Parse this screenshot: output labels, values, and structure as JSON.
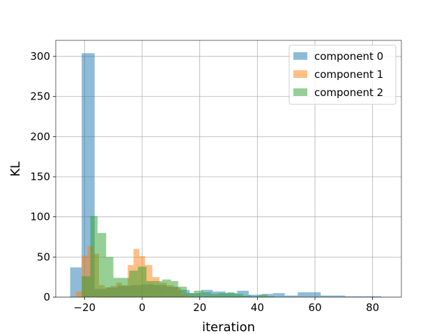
{
  "chart_data": {
    "type": "histogram",
    "title": "",
    "xlabel": "iteration",
    "ylabel": "KL",
    "xlim": [
      -30,
      90
    ],
    "ylim": [
      0,
      320
    ],
    "xticks": [
      -20,
      0,
      20,
      40,
      60,
      80
    ],
    "yticks": [
      0,
      50,
      100,
      150,
      200,
      250,
      300
    ],
    "grid": true,
    "legend_position": "top-right",
    "series": [
      {
        "name": "component 0",
        "color": "#1f77b4",
        "opacity": 0.5,
        "bins": [
          {
            "x0": -25.0,
            "x1": -21.0,
            "y": 37
          },
          {
            "x0": -21.0,
            "x1": -16.5,
            "y": 304
          },
          {
            "x0": -16.5,
            "x1": -12.5,
            "y": 10
          },
          {
            "x0": -12.5,
            "x1": -8.5,
            "y": 12
          },
          {
            "x0": -8.5,
            "x1": -4.0,
            "y": 14
          },
          {
            "x0": -4.0,
            "x1": 0.0,
            "y": 15
          },
          {
            "x0": 0.0,
            "x1": 4.0,
            "y": 16
          },
          {
            "x0": 4.0,
            "x1": 8.5,
            "y": 15
          },
          {
            "x0": 8.5,
            "x1": 12.5,
            "y": 13
          },
          {
            "x0": 12.5,
            "x1": 16.5,
            "y": 9
          },
          {
            "x0": 16.5,
            "x1": 20.5,
            "y": 5
          },
          {
            "x0": 20.5,
            "x1": 24.5,
            "y": 9
          },
          {
            "x0": 24.5,
            "x1": 29.0,
            "y": 7
          },
          {
            "x0": 29.0,
            "x1": 33.0,
            "y": 5
          },
          {
            "x0": 33.0,
            "x1": 37.0,
            "y": 8
          },
          {
            "x0": 37.0,
            "x1": 41.5,
            "y": 3
          },
          {
            "x0": 41.5,
            "x1": 45.5,
            "y": 4
          },
          {
            "x0": 45.5,
            "x1": 49.5,
            "y": 5
          },
          {
            "x0": 49.5,
            "x1": 54.0,
            "y": 2
          },
          {
            "x0": 54.0,
            "x1": 58.0,
            "y": 6
          },
          {
            "x0": 58.0,
            "x1": 62.0,
            "y": 6
          },
          {
            "x0": 62.0,
            "x1": 66.5,
            "y": 2
          },
          {
            "x0": 66.5,
            "x1": 70.5,
            "y": 2
          },
          {
            "x0": 70.5,
            "x1": 74.5,
            "y": 1
          },
          {
            "x0": 74.5,
            "x1": 79.0,
            "y": 1
          },
          {
            "x0": 79.0,
            "x1": 83.0,
            "y": 1
          }
        ]
      },
      {
        "name": "component 1",
        "color": "#ff7f0e",
        "opacity": 0.5,
        "bins": [
          {
            "x0": -23.0,
            "x1": -21.0,
            "y": 7
          },
          {
            "x0": -21.0,
            "x1": -19.0,
            "y": 52
          },
          {
            "x0": -19.0,
            "x1": -17.0,
            "y": 64
          },
          {
            "x0": -17.0,
            "x1": -15.0,
            "y": 54
          },
          {
            "x0": -15.0,
            "x1": -13.0,
            "y": 15
          },
          {
            "x0": -13.0,
            "x1": -11.0,
            "y": 12
          },
          {
            "x0": -11.0,
            "x1": -9.0,
            "y": 14
          },
          {
            "x0": -9.0,
            "x1": -7.0,
            "y": 18
          },
          {
            "x0": -7.0,
            "x1": -5.0,
            "y": 15
          },
          {
            "x0": -5.0,
            "x1": -3.0,
            "y": 40
          },
          {
            "x0": -3.0,
            "x1": -1.0,
            "y": 60
          },
          {
            "x0": -1.0,
            "x1": 1.0,
            "y": 51
          },
          {
            "x0": 1.0,
            "x1": 3.5,
            "y": 40
          },
          {
            "x0": 3.5,
            "x1": 6.0,
            "y": 25
          },
          {
            "x0": 6.0,
            "x1": 8.5,
            "y": 18
          },
          {
            "x0": 8.5,
            "x1": 11.0,
            "y": 15
          },
          {
            "x0": 11.0,
            "x1": 13.5,
            "y": 12
          },
          {
            "x0": 13.5,
            "x1": 16.0,
            "y": 3
          },
          {
            "x0": 16.0,
            "x1": 18.5,
            "y": 1
          }
        ]
      },
      {
        "name": "component 2",
        "color": "#2ca02c",
        "opacity": 0.5,
        "bins": [
          {
            "x0": -21.0,
            "x1": -18.0,
            "y": 26
          },
          {
            "x0": -18.0,
            "x1": -15.5,
            "y": 101
          },
          {
            "x0": -15.5,
            "x1": -12.5,
            "y": 80
          },
          {
            "x0": -12.5,
            "x1": -10.0,
            "y": 50
          },
          {
            "x0": -10.0,
            "x1": -7.0,
            "y": 24
          },
          {
            "x0": -7.0,
            "x1": -4.5,
            "y": 24
          },
          {
            "x0": -4.5,
            "x1": -1.5,
            "y": 33
          },
          {
            "x0": -1.5,
            "x1": 1.5,
            "y": 38
          },
          {
            "x0": 1.5,
            "x1": 4.0,
            "y": 20
          },
          {
            "x0": 4.0,
            "x1": 7.0,
            "y": 20
          },
          {
            "x0": 7.0,
            "x1": 10.0,
            "y": 22
          },
          {
            "x0": 10.0,
            "x1": 12.5,
            "y": 20
          },
          {
            "x0": 12.5,
            "x1": 15.5,
            "y": 13
          },
          {
            "x0": 15.5,
            "x1": 18.0,
            "y": 5
          },
          {
            "x0": 18.0,
            "x1": 21.0,
            "y": 8
          },
          {
            "x0": 21.0,
            "x1": 24.0,
            "y": 6
          },
          {
            "x0": 24.0,
            "x1": 26.5,
            "y": 4
          },
          {
            "x0": 26.5,
            "x1": 29.5,
            "y": 5
          },
          {
            "x0": 29.5,
            "x1": 32.0,
            "y": 6
          },
          {
            "x0": 32.0,
            "x1": 35.0,
            "y": 4
          },
          {
            "x0": 35.0,
            "x1": 38.0,
            "y": 2
          },
          {
            "x0": 38.0,
            "x1": 40.5,
            "y": 1
          },
          {
            "x0": 40.5,
            "x1": 43.5,
            "y": 3
          },
          {
            "x0": 43.5,
            "x1": 46.0,
            "y": 1
          }
        ]
      }
    ]
  }
}
